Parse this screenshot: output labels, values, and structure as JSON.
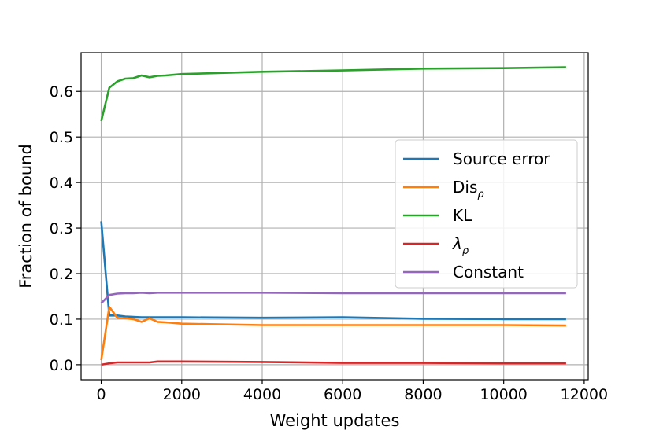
{
  "chart_data": {
    "type": "line",
    "xlabel": "Weight updates",
    "ylabel": "Fraction of bound",
    "xlim": [
      -500,
      12100
    ],
    "ylim": [
      -0.033,
      0.685
    ],
    "xticks": [
      0,
      2000,
      4000,
      6000,
      8000,
      10000,
      12000
    ],
    "yticks": [
      0.0,
      0.1,
      0.2,
      0.3,
      0.4,
      0.5,
      0.6
    ],
    "ytick_labels": [
      "0.0",
      "0.1",
      "0.2",
      "0.3",
      "0.4",
      "0.5",
      "0.6"
    ],
    "grid": true,
    "legend_position": "center-right",
    "series": [
      {
        "name": "Source error",
        "legend_main": "Source error",
        "legend_sub": "",
        "color": "#1f77b4",
        "x": [
          0,
          200,
          400,
          600,
          800,
          1000,
          1200,
          1400,
          2000,
          4000,
          6000,
          8000,
          10000,
          11550
        ],
        "y": [
          0.315,
          0.108,
          0.108,
          0.106,
          0.105,
          0.104,
          0.104,
          0.104,
          0.104,
          0.103,
          0.104,
          0.101,
          0.1,
          0.1
        ]
      },
      {
        "name": "Dis_ρ",
        "legend_main": "Dis",
        "legend_sub": "ρ",
        "color": "#ff7f0e",
        "x": [
          0,
          200,
          400,
          600,
          800,
          1000,
          1200,
          1400,
          1600,
          2000,
          4000,
          6000,
          8000,
          10000,
          11550
        ],
        "y": [
          0.01,
          0.127,
          0.103,
          0.102,
          0.1,
          0.094,
          0.102,
          0.094,
          0.093,
          0.09,
          0.087,
          0.087,
          0.087,
          0.087,
          0.086
        ]
      },
      {
        "name": "KL",
        "legend_main": "KL",
        "legend_sub": "",
        "color": "#2ca02c",
        "x": [
          0,
          200,
          400,
          600,
          800,
          1000,
          1200,
          1400,
          1600,
          2000,
          4000,
          6000,
          8000,
          10000,
          11550
        ],
        "y": [
          0.535,
          0.608,
          0.622,
          0.628,
          0.629,
          0.635,
          0.631,
          0.634,
          0.635,
          0.638,
          0.643,
          0.646,
          0.65,
          0.651,
          0.653
        ]
      },
      {
        "name": "λ_ρ",
        "legend_main": "λ",
        "legend_sub": "ρ",
        "color": "#d62728",
        "x": [
          0,
          200,
          400,
          600,
          800,
          1000,
          1200,
          1400,
          2000,
          4000,
          6000,
          8000,
          10000,
          11550
        ],
        "y": [
          0.0,
          0.003,
          0.005,
          0.005,
          0.005,
          0.005,
          0.005,
          0.007,
          0.007,
          0.006,
          0.004,
          0.004,
          0.003,
          0.003
        ]
      },
      {
        "name": "Constant",
        "legend_main": "Constant",
        "legend_sub": "",
        "color": "#9467bd",
        "x": [
          0,
          200,
          400,
          600,
          800,
          1000,
          1200,
          1400,
          2000,
          4000,
          6000,
          8000,
          10000,
          11550
        ],
        "y": [
          0.135,
          0.153,
          0.156,
          0.157,
          0.157,
          0.158,
          0.157,
          0.158,
          0.158,
          0.158,
          0.157,
          0.157,
          0.157,
          0.157
        ]
      }
    ]
  }
}
